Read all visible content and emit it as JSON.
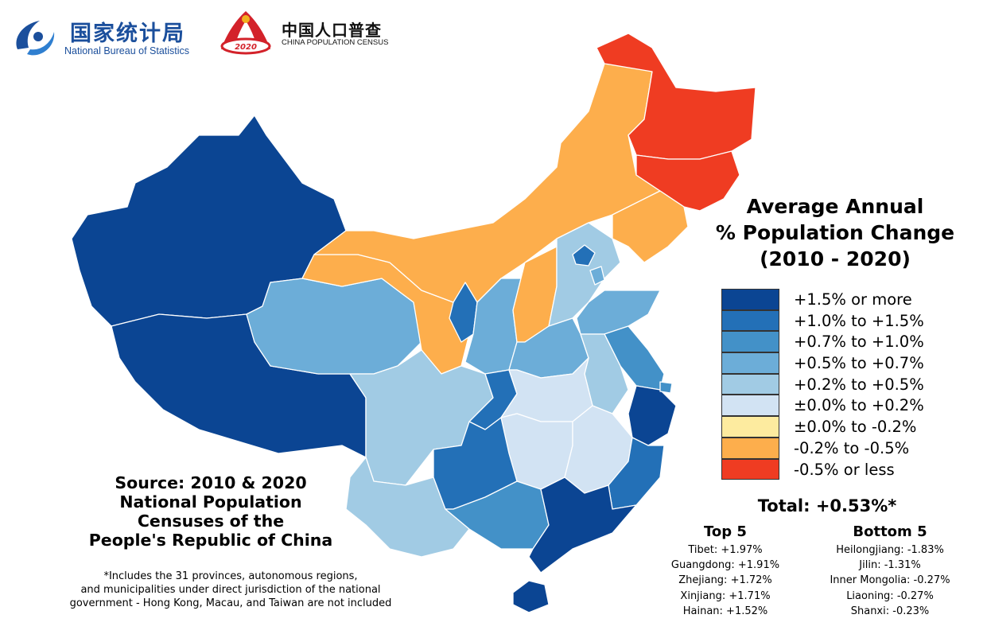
{
  "logos": {
    "nbs_cn": "国家统计局",
    "nbs_en": "National Bureau of Statistics",
    "census_cn": "中国人口普查",
    "census_en": "CHINA POPULATION CENSUS",
    "census_badge_year": "2020"
  },
  "legend": {
    "title_lines": [
      "Average Annual",
      "% Population Change",
      "(2010 - 2020)"
    ],
    "classes": [
      {
        "label": "+1.5% or more",
        "color": "#0b4593"
      },
      {
        "label": "+1.0% to +1.5%",
        "color": "#2370b7"
      },
      {
        "label": "+0.7% to +1.0%",
        "color": "#4391c8"
      },
      {
        "label": "+0.5% to +0.7%",
        "color": "#6cadd8"
      },
      {
        "label": "+0.2% to +0.5%",
        "color": "#a1cbe4"
      },
      {
        "label": "±0.0% to +0.2%",
        "color": "#d2e3f3"
      },
      {
        "label": "±0.0% to -0.2%",
        "color": "#fdeb9f"
      },
      {
        "label": "-0.2% to -0.5%",
        "color": "#fdae4c"
      },
      {
        "label": "-0.5% or less",
        "color": "#ef3c22"
      }
    ]
  },
  "total": "Total: +0.53%*",
  "top5": {
    "heading": "Top 5",
    "items": [
      "Tibet: +1.97%",
      "Guangdong: +1.91%",
      "Zhejiang: +1.72%",
      "Xinjiang: +1.71%",
      "Hainan: +1.52%"
    ]
  },
  "bottom5": {
    "heading": "Bottom 5",
    "items": [
      "Heilongjiang: -1.83%",
      "Jilin: -1.31%",
      "Inner Mongolia: -0.27%",
      "Liaoning: -0.27%",
      "Shanxi: -0.23%"
    ]
  },
  "source_lines": [
    "Source: 2010 & 2020",
    "National Population",
    "Censuses of the",
    "People's Republic of China"
  ],
  "footnote_lines": [
    "*Includes the 31 provinces, autonomous regions,",
    "and municipalities under direct jurisdiction of the national",
    "government - Hong Kong, Macau, and Taiwan are not included"
  ],
  "regions": [
    {
      "name": "Xinjiang",
      "class": 0
    },
    {
      "name": "Tibet",
      "class": 0
    },
    {
      "name": "Qinghai",
      "class": 3
    },
    {
      "name": "Gansu",
      "class": 7
    },
    {
      "name": "Inner Mongolia",
      "class": 7
    },
    {
      "name": "Heilongjiang",
      "class": 8
    },
    {
      "name": "Jilin",
      "class": 8
    },
    {
      "name": "Liaoning",
      "class": 7
    },
    {
      "name": "Ningxia",
      "class": 1
    },
    {
      "name": "Shaanxi",
      "class": 3
    },
    {
      "name": "Shanxi",
      "class": 7
    },
    {
      "name": "Hebei",
      "class": 4
    },
    {
      "name": "Beijing",
      "class": 1
    },
    {
      "name": "Tianjin",
      "class": 3
    },
    {
      "name": "Shandong",
      "class": 3
    },
    {
      "name": "Henan",
      "class": 3
    },
    {
      "name": "Jiangsu",
      "class": 2
    },
    {
      "name": "Anhui",
      "class": 4
    },
    {
      "name": "Zhejiang",
      "class": 0
    },
    {
      "name": "Shanghai",
      "class": 2
    },
    {
      "name": "Sichuan",
      "class": 4
    },
    {
      "name": "Chongqing",
      "class": 1
    },
    {
      "name": "Hubei",
      "class": 5
    },
    {
      "name": "Hunan",
      "class": 5
    },
    {
      "name": "Jiangxi",
      "class": 5
    },
    {
      "name": "Fujian",
      "class": 1
    },
    {
      "name": "Yunnan",
      "class": 4
    },
    {
      "name": "Guizhou",
      "class": 1
    },
    {
      "name": "Guangxi",
      "class": 2
    },
    {
      "name": "Guangdong",
      "class": 0
    },
    {
      "name": "Hainan",
      "class": 0
    }
  ]
}
